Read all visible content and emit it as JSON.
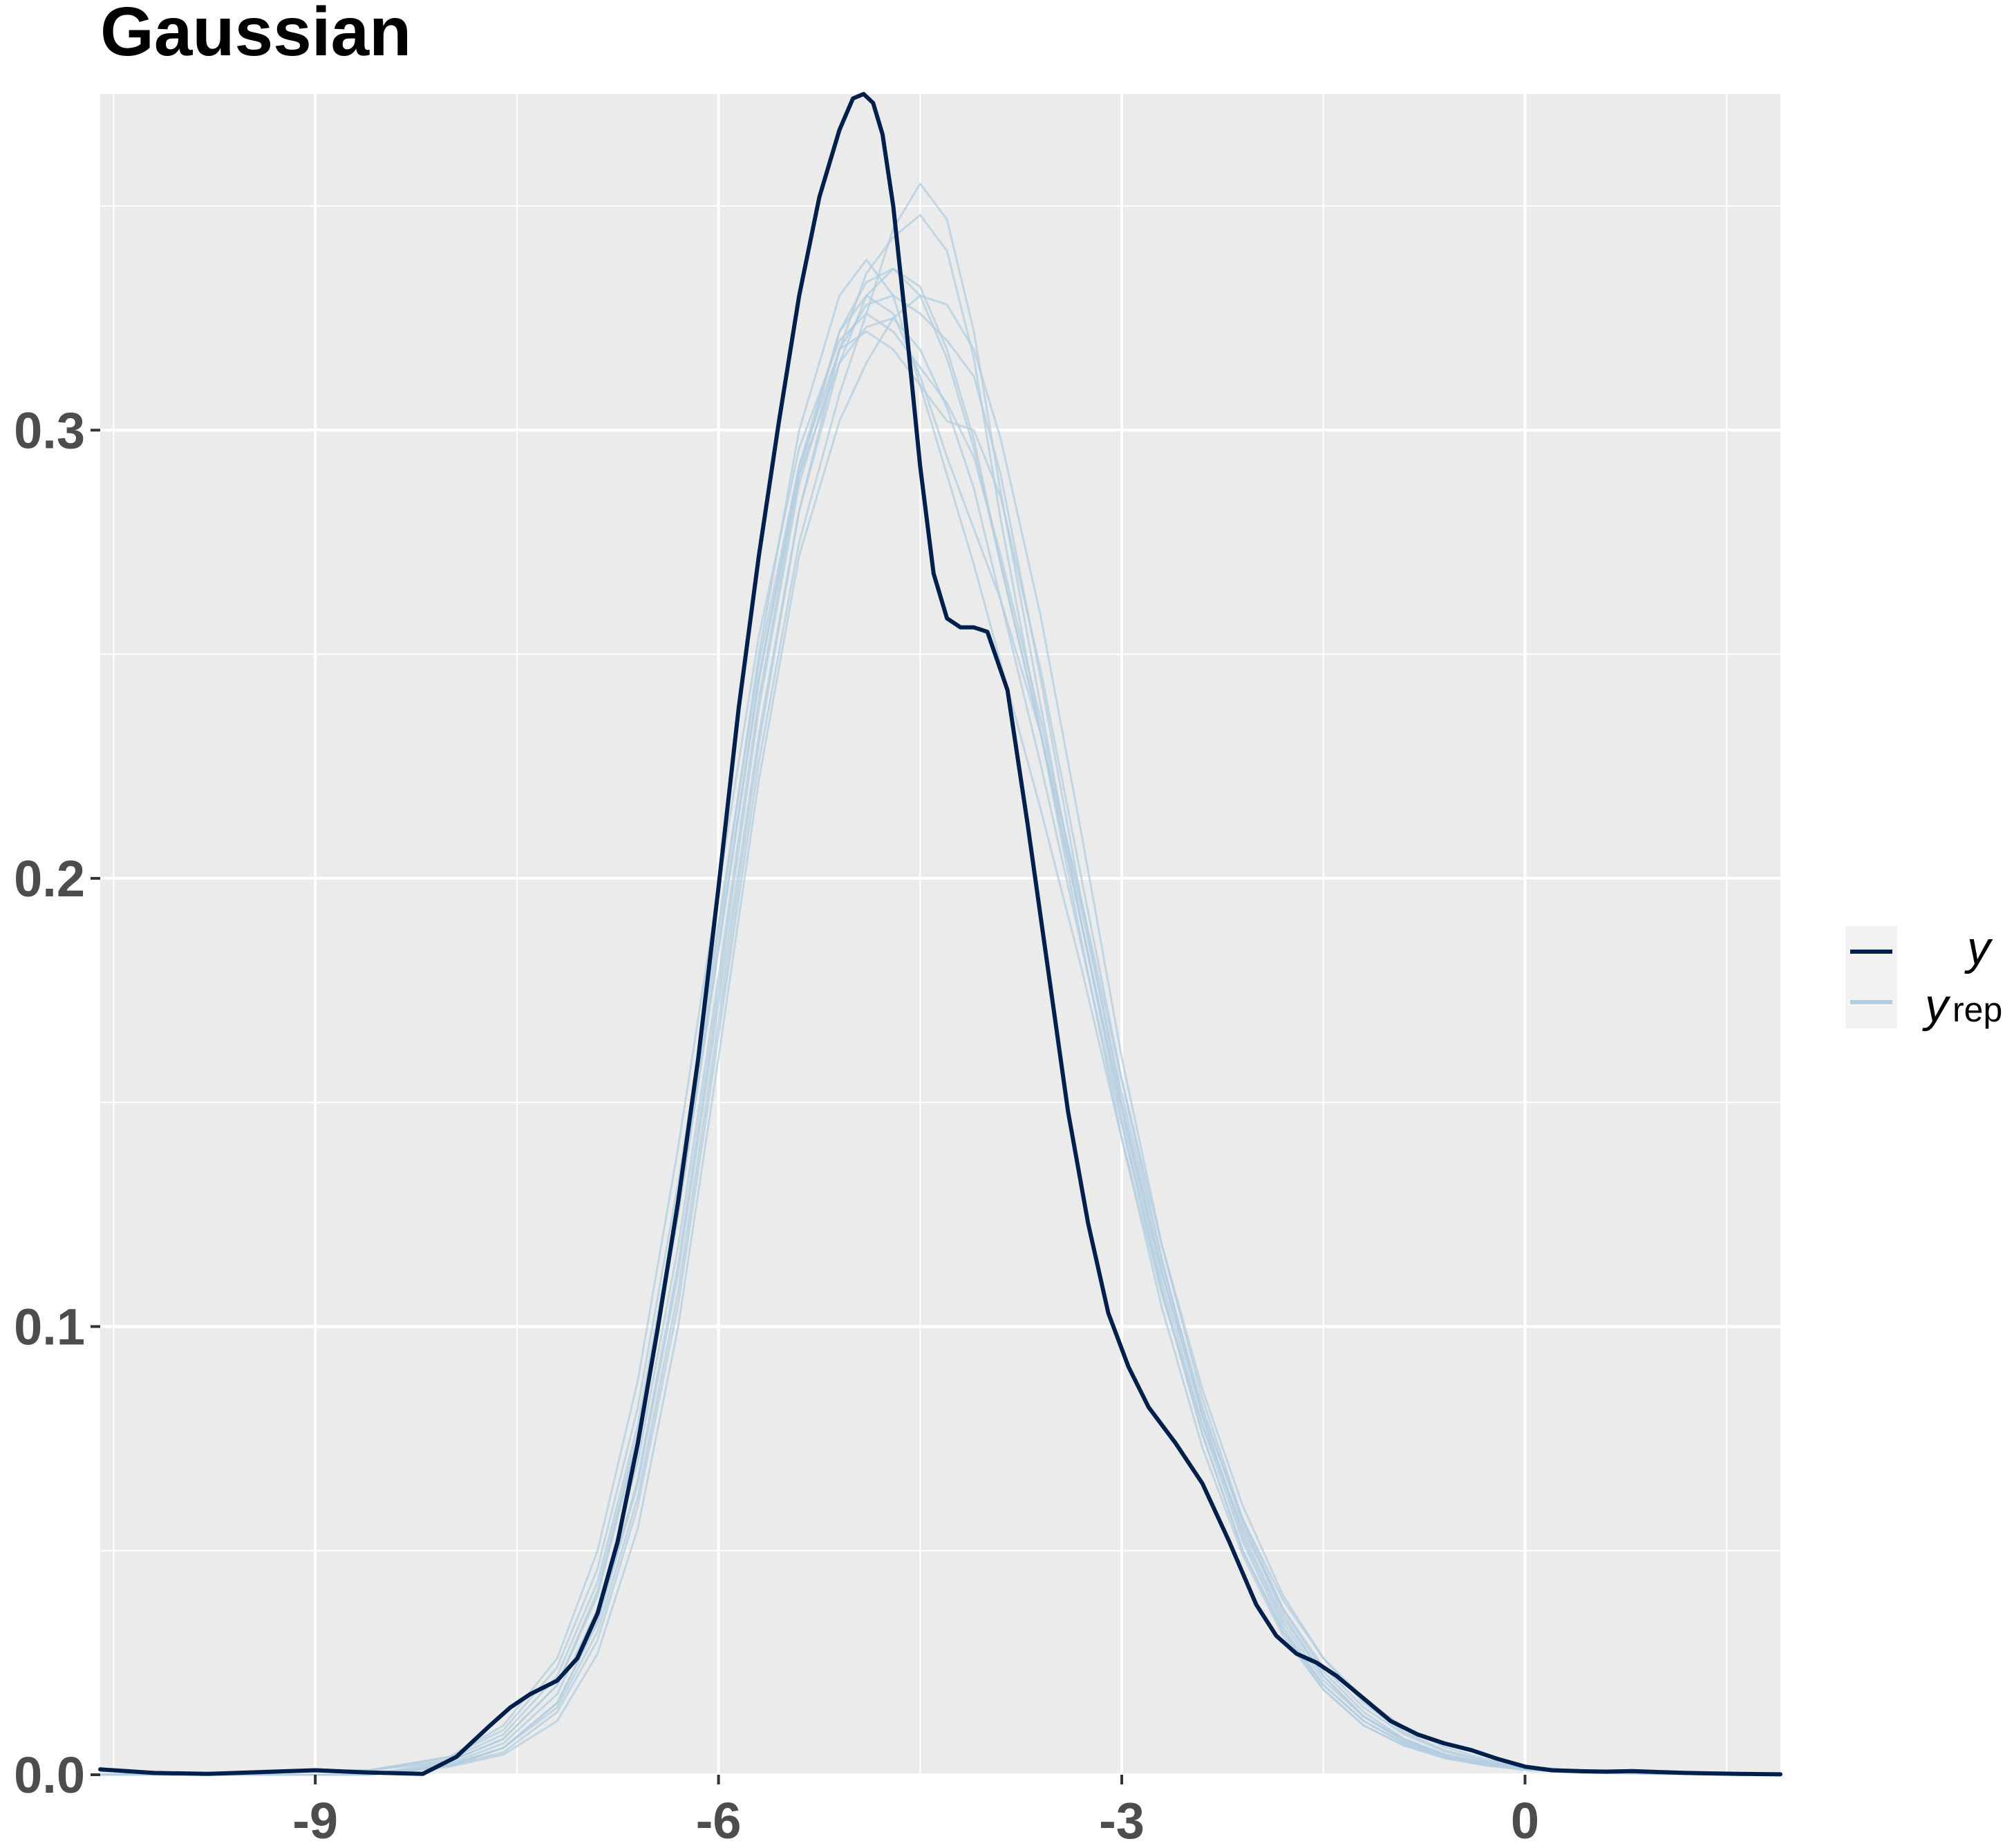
{
  "chart_data": {
    "type": "line",
    "title": "Gaussian",
    "xlabel": "",
    "ylabel": "",
    "xlim": [
      -10.6,
      1.9
    ],
    "ylim": [
      0,
      0.375
    ],
    "xticks": [
      -9,
      -6,
      -3,
      0
    ],
    "xtick_labels": [
      "-9",
      "-6",
      "-3",
      "0"
    ],
    "yticks": [
      0.0,
      0.1,
      0.2,
      0.3
    ],
    "ytick_labels": [
      "0.0",
      "0.1",
      "0.2",
      "0.3"
    ],
    "grid": true,
    "legend_position": "right",
    "colors": {
      "y": "#011f4b",
      "yrep": "#b3cde0",
      "panel": "#ebebeb",
      "grid": "#ffffff"
    },
    "legend": [
      {
        "key": "y",
        "label": "y",
        "subscript": ""
      },
      {
        "key": "yrep",
        "label": "y",
        "subscript": "rep"
      }
    ],
    "series": [
      {
        "name": "y",
        "x": [
          -10.6,
          -10.2,
          -9.8,
          -9.4,
          -9.0,
          -8.6,
          -8.2,
          -7.95,
          -7.7,
          -7.55,
          -7.4,
          -7.2,
          -7.05,
          -6.9,
          -6.75,
          -6.6,
          -6.45,
          -6.3,
          -6.15,
          -6.0,
          -5.85,
          -5.7,
          -5.55,
          -5.4,
          -5.25,
          -5.1,
          -5.0,
          -4.92,
          -4.85,
          -4.78,
          -4.7,
          -4.6,
          -4.5,
          -4.4,
          -4.3,
          -4.2,
          -4.1,
          -4.0,
          -3.85,
          -3.7,
          -3.55,
          -3.4,
          -3.25,
          -3.1,
          -2.95,
          -2.8,
          -2.6,
          -2.4,
          -2.2,
          -2.0,
          -1.85,
          -1.7,
          -1.55,
          -1.4,
          -1.2,
          -1.0,
          -0.8,
          -0.6,
          -0.4,
          -0.2,
          0.0,
          0.2,
          0.4,
          0.6,
          0.8,
          1.0,
          1.2,
          1.4,
          1.6,
          1.9
        ],
        "y": [
          0.0012,
          0.0004,
          0.0002,
          0.0006,
          0.001,
          0.0005,
          0.0002,
          0.004,
          0.011,
          0.015,
          0.018,
          0.021,
          0.026,
          0.036,
          0.052,
          0.074,
          0.1,
          0.128,
          0.16,
          0.198,
          0.238,
          0.272,
          0.302,
          0.33,
          0.352,
          0.367,
          0.374,
          0.375,
          0.373,
          0.366,
          0.35,
          0.322,
          0.292,
          0.268,
          0.258,
          0.256,
          0.256,
          0.255,
          0.242,
          0.212,
          0.18,
          0.148,
          0.123,
          0.103,
          0.091,
          0.082,
          0.074,
          0.065,
          0.052,
          0.038,
          0.031,
          0.027,
          0.025,
          0.022,
          0.017,
          0.012,
          0.009,
          0.007,
          0.0055,
          0.0035,
          0.0018,
          0.001,
          0.0008,
          0.0007,
          0.0008,
          0.0006,
          0.0004,
          0.0003,
          0.0002,
          0.0001
        ]
      },
      {
        "name": "",
        "x": [
          -10.6,
          -8.6,
          -8.0,
          -7.6,
          -7.2,
          -6.9,
          -6.6,
          -6.3,
          -6.0,
          -5.7,
          -5.4,
          -5.1,
          -4.9,
          -4.7,
          -4.5,
          -4.3,
          -4.1,
          -3.9,
          -3.6,
          -3.3,
          -3.0,
          -2.7,
          -2.4,
          -2.1,
          -1.8,
          -1.5,
          -1.2,
          -0.9,
          -0.6,
          -0.3,
          0.0,
          0.4,
          1.0,
          1.9
        ],
        "y": [
          0.0,
          0.0,
          0.003,
          0.008,
          0.02,
          0.04,
          0.075,
          0.125,
          0.185,
          0.245,
          0.29,
          0.315,
          0.323,
          0.325,
          0.318,
          0.305,
          0.287,
          0.262,
          0.225,
          0.185,
          0.145,
          0.108,
          0.076,
          0.05,
          0.032,
          0.02,
          0.012,
          0.007,
          0.004,
          0.0025,
          0.0015,
          0.0008,
          0.0003,
          0.0
        ]
      },
      {
        "name": "",
        "x": [
          -10.6,
          -8.6,
          -8.0,
          -7.6,
          -7.2,
          -6.9,
          -6.6,
          -6.3,
          -6.0,
          -5.7,
          -5.4,
          -5.1,
          -4.9,
          -4.7,
          -4.5,
          -4.3,
          -4.1,
          -3.9,
          -3.6,
          -3.3,
          -3.0,
          -2.7,
          -2.4,
          -2.1,
          -1.8,
          -1.5,
          -1.2,
          -0.9,
          -0.6,
          -0.3,
          0.0,
          0.4,
          1.0,
          1.9
        ],
        "y": [
          0.0,
          0.0,
          0.002,
          0.006,
          0.016,
          0.034,
          0.065,
          0.112,
          0.172,
          0.232,
          0.282,
          0.318,
          0.335,
          0.343,
          0.348,
          0.34,
          0.316,
          0.28,
          0.232,
          0.186,
          0.142,
          0.104,
          0.073,
          0.049,
          0.031,
          0.019,
          0.011,
          0.0065,
          0.0038,
          0.0022,
          0.0012,
          0.0006,
          0.0002,
          0.0
        ]
      },
      {
        "name": "",
        "x": [
          -10.6,
          -8.6,
          -8.0,
          -7.6,
          -7.2,
          -6.9,
          -6.6,
          -6.3,
          -6.0,
          -5.7,
          -5.4,
          -5.1,
          -4.9,
          -4.7,
          -4.5,
          -4.3,
          -4.1,
          -3.9,
          -3.6,
          -3.3,
          -3.0,
          -2.7,
          -2.4,
          -2.1,
          -1.8,
          -1.5,
          -1.2,
          -0.9,
          -0.6,
          -0.3,
          0.0,
          0.4,
          1.0,
          1.9
        ],
        "y": [
          0.0,
          0.001,
          0.004,
          0.01,
          0.024,
          0.046,
          0.082,
          0.132,
          0.19,
          0.248,
          0.292,
          0.318,
          0.322,
          0.318,
          0.31,
          0.302,
          0.3,
          0.285,
          0.246,
          0.2,
          0.155,
          0.115,
          0.08,
          0.053,
          0.034,
          0.021,
          0.013,
          0.008,
          0.0045,
          0.0026,
          0.0014,
          0.0007,
          0.0002,
          0.0
        ]
      },
      {
        "name": "",
        "x": [
          -10.6,
          -8.6,
          -8.0,
          -7.6,
          -7.2,
          -6.9,
          -6.6,
          -6.3,
          -6.0,
          -5.7,
          -5.4,
          -5.1,
          -4.9,
          -4.7,
          -4.5,
          -4.3,
          -4.1,
          -3.9,
          -3.6,
          -3.3,
          -3.0,
          -2.7,
          -2.4,
          -2.1,
          -1.8,
          -1.5,
          -1.2,
          -0.9,
          -0.6,
          -0.3,
          0.0,
          0.4,
          1.0,
          1.9
        ],
        "y": [
          0.0,
          0.0,
          0.0025,
          0.007,
          0.018,
          0.037,
          0.07,
          0.118,
          0.178,
          0.24,
          0.29,
          0.322,
          0.333,
          0.336,
          0.332,
          0.318,
          0.298,
          0.27,
          0.232,
          0.19,
          0.148,
          0.11,
          0.078,
          0.052,
          0.033,
          0.02,
          0.012,
          0.007,
          0.004,
          0.0023,
          0.0013,
          0.0006,
          0.0002,
          0.0
        ]
      },
      {
        "name": "",
        "x": [
          -10.6,
          -8.6,
          -8.0,
          -7.6,
          -7.2,
          -6.9,
          -6.6,
          -6.3,
          -6.0,
          -5.7,
          -5.4,
          -5.1,
          -4.9,
          -4.7,
          -4.5,
          -4.3,
          -4.1,
          -3.9,
          -3.6,
          -3.3,
          -3.0,
          -2.7,
          -2.4,
          -2.1,
          -1.8,
          -1.5,
          -1.2,
          -0.9,
          -0.6,
          -0.3,
          0.0,
          0.4,
          1.0,
          1.9
        ],
        "y": [
          0.0,
          0.0,
          0.002,
          0.005,
          0.014,
          0.03,
          0.06,
          0.105,
          0.165,
          0.226,
          0.275,
          0.308,
          0.326,
          0.345,
          0.355,
          0.347,
          0.322,
          0.286,
          0.238,
          0.19,
          0.146,
          0.108,
          0.076,
          0.05,
          0.032,
          0.019,
          0.011,
          0.0065,
          0.0037,
          0.0021,
          0.0011,
          0.0005,
          0.0002,
          0.0
        ]
      },
      {
        "name": "",
        "x": [
          -10.6,
          -8.6,
          -8.0,
          -7.6,
          -7.2,
          -6.9,
          -6.6,
          -6.3,
          -6.0,
          -5.7,
          -5.4,
          -5.1,
          -4.9,
          -4.7,
          -4.5,
          -4.3,
          -4.1,
          -3.9,
          -3.6,
          -3.3,
          -3.0,
          -2.7,
          -2.4,
          -2.1,
          -1.8,
          -1.5,
          -1.2,
          -0.9,
          -0.6,
          -0.3,
          0.0,
          0.4,
          1.0,
          1.9
        ],
        "y": [
          0.0,
          0.001,
          0.0035,
          0.009,
          0.022,
          0.043,
          0.078,
          0.128,
          0.188,
          0.25,
          0.3,
          0.33,
          0.338,
          0.33,
          0.31,
          0.29,
          0.27,
          0.248,
          0.215,
          0.18,
          0.142,
          0.107,
          0.078,
          0.055,
          0.037,
          0.024,
          0.015,
          0.009,
          0.0052,
          0.003,
          0.0017,
          0.0008,
          0.0003,
          0.0
        ]
      },
      {
        "name": "",
        "x": [
          -10.6,
          -8.6,
          -8.0,
          -7.6,
          -7.2,
          -6.9,
          -6.6,
          -6.3,
          -6.0,
          -5.7,
          -5.4,
          -5.1,
          -4.9,
          -4.7,
          -4.5,
          -4.3,
          -4.1,
          -3.9,
          -3.6,
          -3.3,
          -3.0,
          -2.7,
          -2.4,
          -2.1,
          -1.8,
          -1.5,
          -1.2,
          -0.9,
          -0.6,
          -0.3,
          0.0,
          0.4,
          1.0,
          1.9
        ],
        "y": [
          0.0,
          0.0,
          0.0018,
          0.0045,
          0.012,
          0.027,
          0.055,
          0.1,
          0.16,
          0.222,
          0.272,
          0.302,
          0.315,
          0.325,
          0.33,
          0.328,
          0.318,
          0.298,
          0.258,
          0.21,
          0.16,
          0.118,
          0.084,
          0.057,
          0.037,
          0.023,
          0.014,
          0.008,
          0.0046,
          0.0026,
          0.0014,
          0.0007,
          0.0002,
          0.0
        ]
      },
      {
        "name": "",
        "x": [
          -10.6,
          -8.6,
          -8.0,
          -7.6,
          -7.2,
          -6.9,
          -6.6,
          -6.3,
          -6.0,
          -5.7,
          -5.4,
          -5.1,
          -4.9,
          -4.7,
          -4.5,
          -4.3,
          -4.1,
          -3.9,
          -3.6,
          -3.3,
          -3.0,
          -2.7,
          -2.4,
          -2.1,
          -1.8,
          -1.5,
          -1.2,
          -0.9,
          -0.6,
          -0.3,
          0.0,
          0.4,
          1.0,
          1.9
        ],
        "y": [
          0.0,
          0.001,
          0.003,
          0.008,
          0.02,
          0.041,
          0.076,
          0.125,
          0.184,
          0.244,
          0.292,
          0.322,
          0.33,
          0.326,
          0.312,
          0.294,
          0.278,
          0.262,
          0.232,
          0.195,
          0.155,
          0.118,
          0.086,
          0.06,
          0.04,
          0.026,
          0.016,
          0.0095,
          0.0055,
          0.0031,
          0.0017,
          0.0008,
          0.0003,
          0.0
        ]
      },
      {
        "name": "",
        "x": [
          -10.6,
          -8.6,
          -8.0,
          -7.6,
          -7.2,
          -6.9,
          -6.6,
          -6.3,
          -6.0,
          -5.7,
          -5.4,
          -5.1,
          -4.9,
          -4.7,
          -4.5,
          -4.3,
          -4.1,
          -3.9,
          -3.6,
          -3.3,
          -3.0,
          -2.7,
          -2.4,
          -2.1,
          -1.8,
          -1.5,
          -1.2,
          -0.9,
          -0.6,
          -0.3,
          0.0,
          0.4,
          1.0,
          1.9
        ],
        "y": [
          0.0,
          0.0,
          0.002,
          0.006,
          0.015,
          0.032,
          0.062,
          0.108,
          0.168,
          0.23,
          0.282,
          0.315,
          0.33,
          0.336,
          0.33,
          0.316,
          0.296,
          0.27,
          0.232,
          0.19,
          0.149,
          0.112,
          0.08,
          0.054,
          0.035,
          0.022,
          0.013,
          0.0076,
          0.0043,
          0.0024,
          0.0013,
          0.0006,
          0.0002,
          0.0
        ]
      },
      {
        "name": "",
        "x": [
          -10.6,
          -8.6,
          -8.0,
          -7.6,
          -7.2,
          -6.9,
          -6.6,
          -6.3,
          -6.0,
          -5.7,
          -5.4,
          -5.1,
          -4.9,
          -4.7,
          -4.5,
          -4.3,
          -4.1,
          -3.9,
          -3.6,
          -3.3,
          -3.0,
          -2.7,
          -2.4,
          -2.1,
          -1.8,
          -1.5,
          -1.2,
          -0.9,
          -0.6,
          -0.3,
          0.0,
          0.4,
          1.0,
          1.9
        ],
        "y": [
          0.0,
          0.001,
          0.004,
          0.011,
          0.026,
          0.05,
          0.088,
          0.14,
          0.198,
          0.254,
          0.296,
          0.32,
          0.326,
          0.322,
          0.314,
          0.306,
          0.294,
          0.272,
          0.235,
          0.193,
          0.152,
          0.114,
          0.082,
          0.056,
          0.036,
          0.022,
          0.013,
          0.0075,
          0.0042,
          0.0023,
          0.0012,
          0.0005,
          0.0002,
          0.0
        ]
      },
      {
        "name": "",
        "x": [
          -10.6,
          -8.6,
          -8.0,
          -7.6,
          -7.2,
          -6.9,
          -6.6,
          -6.3,
          -6.0,
          -5.7,
          -5.4,
          -5.1,
          -4.9,
          -4.7,
          -4.5,
          -4.3,
          -4.1,
          -3.9,
          -3.6,
          -3.3,
          -3.0,
          -2.7,
          -2.4,
          -2.1,
          -1.8,
          -1.5,
          -1.2,
          -0.9,
          -0.6,
          -0.3,
          0.0,
          0.4,
          1.0,
          1.9
        ],
        "y": [
          0.0,
          0.0,
          0.0022,
          0.006,
          0.016,
          0.034,
          0.066,
          0.114,
          0.175,
          0.238,
          0.288,
          0.318,
          0.328,
          0.33,
          0.326,
          0.32,
          0.312,
          0.29,
          0.244,
          0.195,
          0.15,
          0.112,
          0.081,
          0.057,
          0.039,
          0.026,
          0.017,
          0.0105,
          0.0062,
          0.0035,
          0.0019,
          0.0009,
          0.0003,
          0.0
        ]
      }
    ]
  }
}
